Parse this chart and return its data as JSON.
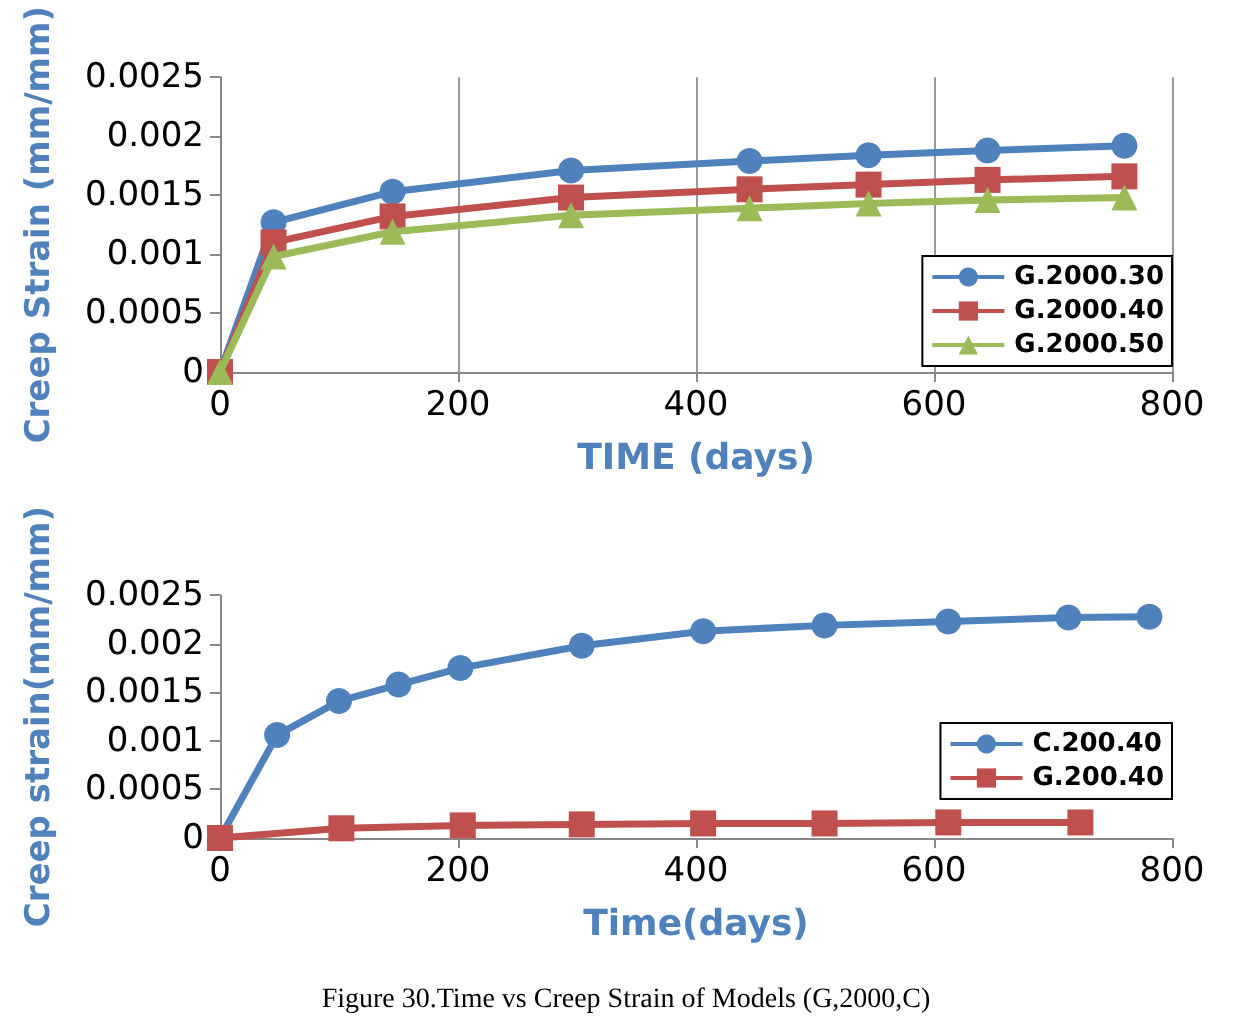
{
  "chart_data": [
    {
      "type": "line",
      "xlabel": "TIME (days)",
      "ylabel": "Creep Strain (mm/mm)",
      "xlim": [
        0,
        800
      ],
      "xticks": [
        0,
        200,
        400,
        600,
        800
      ],
      "ylim": [
        0,
        0.0025
      ],
      "yticks": [
        0,
        0.0005,
        0.001,
        0.0015,
        0.002,
        0.0025
      ],
      "grid": "x",
      "legend": "bottom right",
      "line_style": "solid",
      "x": [
        0,
        45,
        145,
        295,
        445,
        545,
        645,
        760
      ],
      "series": [
        {
          "name": "G.2000.30",
          "color": "#4f81bd",
          "marker": "circle",
          "values": [
            0,
            0.00127,
            0.00153,
            0.00171,
            0.00179,
            0.00184,
            0.00188,
            0.00192
          ]
        },
        {
          "name": "G.2000.40",
          "color": "#c0504d",
          "marker": "square",
          "values": [
            0,
            0.0011,
            0.00132,
            0.00148,
            0.00155,
            0.00159,
            0.00163,
            0.00166
          ]
        },
        {
          "name": "G.2000.50",
          "color": "#9bbb59",
          "marker": "triangle",
          "values": [
            0,
            0.00098,
            0.00119,
            0.00133,
            0.00139,
            0.00143,
            0.00146,
            0.00148
          ]
        }
      ]
    },
    {
      "type": "line",
      "xlabel": "Time(days)",
      "ylabel": "Creep strain(mm/mm)",
      "xlim": [
        0,
        800
      ],
      "xticks": [
        0,
        200,
        400,
        600,
        800
      ],
      "ylim": [
        0,
        0.0025
      ],
      "yticks": [
        0,
        0.0005,
        0.001,
        0.0015,
        0.002,
        0.0025
      ],
      "legend": "right",
      "line_style": "solid",
      "annotations": [
        "Figure 30.Time vs Creep Strain of Models (G,2000,C)"
      ],
      "series": [
        {
          "name": "C.200.40",
          "color": "#4f81bd",
          "marker": "circle",
          "x": [
            0,
            48,
            100,
            150,
            202,
            304,
            406,
            508,
            612,
            713,
            781
          ],
          "values": [
            0,
            0.00106,
            0.00141,
            0.00158,
            0.00175,
            0.00198,
            0.00213,
            0.00219,
            0.00223,
            0.00227,
            0.00228
          ]
        },
        {
          "name": "G.200.40",
          "color": "#c0504d",
          "marker": "square",
          "x": [
            0,
            102,
            204,
            304,
            406,
            508,
            612,
            723
          ],
          "values": [
            0,
            0.0001,
            0.00013,
            0.00014,
            0.00015,
            0.00015,
            0.00016,
            0.00016
          ]
        }
      ]
    }
  ]
}
